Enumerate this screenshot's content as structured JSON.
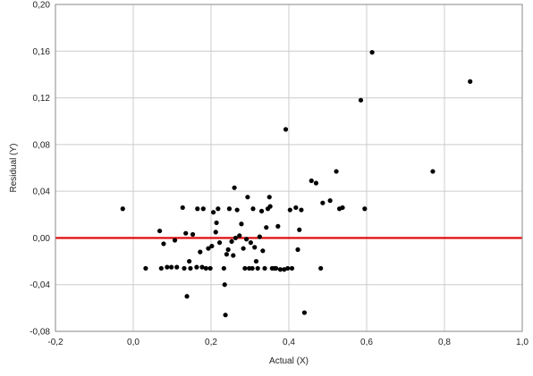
{
  "chart_data": {
    "type": "scatter",
    "title": "",
    "xlabel": "Actual (X)",
    "ylabel": "Residual (Y)",
    "xlim": [
      -0.2,
      1.0
    ],
    "ylim": [
      -0.08,
      0.2
    ],
    "x_ticks": [
      -0.2,
      0.0,
      0.2,
      0.4,
      0.6,
      0.8,
      1.0
    ],
    "x_tick_labels": [
      "-0,2",
      "0,0",
      "0,2",
      "0,4",
      "0,6",
      "0,8",
      "1,0"
    ],
    "y_ticks": [
      -0.08,
      -0.04,
      0.0,
      0.04,
      0.08,
      0.12,
      0.16,
      0.2
    ],
    "y_tick_labels": [
      "-0,08",
      "-0,04",
      "0,00",
      "0,04",
      "0,08",
      "0,12",
      "0,16",
      "0,20"
    ],
    "grid": true,
    "reference_line": {
      "y": 0.0,
      "color": "#e00000"
    },
    "point_color": "#000000",
    "points": [
      [
        -0.027,
        0.025
      ],
      [
        0.032,
        -0.026
      ],
      [
        0.068,
        0.006
      ],
      [
        0.072,
        -0.026
      ],
      [
        0.078,
        -0.005
      ],
      [
        0.087,
        -0.025
      ],
      [
        0.098,
        -0.025
      ],
      [
        0.107,
        -0.002
      ],
      [
        0.112,
        -0.025
      ],
      [
        0.127,
        0.026
      ],
      [
        0.131,
        -0.026
      ],
      [
        0.135,
        0.004
      ],
      [
        0.138,
        -0.05
      ],
      [
        0.144,
        -0.02
      ],
      [
        0.147,
        -0.026
      ],
      [
        0.153,
        0.003
      ],
      [
        0.163,
        -0.025
      ],
      [
        0.165,
        0.025
      ],
      [
        0.172,
        -0.012
      ],
      [
        0.177,
        -0.025
      ],
      [
        0.18,
        0.025
      ],
      [
        0.187,
        -0.026
      ],
      [
        0.193,
        -0.009
      ],
      [
        0.198,
        -0.026
      ],
      [
        0.202,
        -0.007
      ],
      [
        0.206,
        0.022
      ],
      [
        0.212,
        0.005
      ],
      [
        0.214,
        0.013
      ],
      [
        0.218,
        0.025
      ],
      [
        0.222,
        -0.004
      ],
      [
        0.233,
        -0.026
      ],
      [
        0.235,
        -0.04
      ],
      [
        0.237,
        -0.066
      ],
      [
        0.24,
        -0.014
      ],
      [
        0.244,
        -0.01
      ],
      [
        0.247,
        0.025
      ],
      [
        0.253,
        -0.003
      ],
      [
        0.257,
        -0.015
      ],
      [
        0.26,
        0.043
      ],
      [
        0.263,
        0.0
      ],
      [
        0.267,
        0.024
      ],
      [
        0.273,
        0.002
      ],
      [
        0.278,
        0.012
      ],
      [
        0.283,
        -0.009
      ],
      [
        0.287,
        -0.026
      ],
      [
        0.291,
        -0.001
      ],
      [
        0.294,
        0.035
      ],
      [
        0.298,
        -0.026
      ],
      [
        0.302,
        -0.004
      ],
      [
        0.306,
        -0.026
      ],
      [
        0.308,
        0.025
      ],
      [
        0.312,
        -0.008
      ],
      [
        0.316,
        -0.02
      ],
      [
        0.32,
        -0.026
      ],
      [
        0.325,
        0.001
      ],
      [
        0.33,
        0.023
      ],
      [
        0.333,
        -0.011
      ],
      [
        0.338,
        -0.026
      ],
      [
        0.342,
        0.009
      ],
      [
        0.346,
        0.025
      ],
      [
        0.35,
        0.035
      ],
      [
        0.352,
        0.027
      ],
      [
        0.357,
        -0.026
      ],
      [
        0.363,
        -0.026
      ],
      [
        0.367,
        -0.026
      ],
      [
        0.372,
        0.01
      ],
      [
        0.378,
        -0.027
      ],
      [
        0.388,
        -0.027
      ],
      [
        0.392,
        0.093
      ],
      [
        0.397,
        -0.026
      ],
      [
        0.403,
        0.024
      ],
      [
        0.408,
        -0.026
      ],
      [
        0.418,
        0.026
      ],
      [
        0.423,
        -0.01
      ],
      [
        0.427,
        0.007
      ],
      [
        0.432,
        0.024
      ],
      [
        0.44,
        -0.064
      ],
      [
        0.458,
        0.049
      ],
      [
        0.47,
        0.047
      ],
      [
        0.482,
        -0.026
      ],
      [
        0.487,
        0.03
      ],
      [
        0.506,
        0.032
      ],
      [
        0.522,
        0.057
      ],
      [
        0.53,
        0.025
      ],
      [
        0.538,
        0.026
      ],
      [
        0.585,
        0.118
      ],
      [
        0.595,
        0.025
      ],
      [
        0.614,
        0.159
      ],
      [
        0.77,
        0.057
      ],
      [
        0.866,
        0.134
      ]
    ]
  }
}
